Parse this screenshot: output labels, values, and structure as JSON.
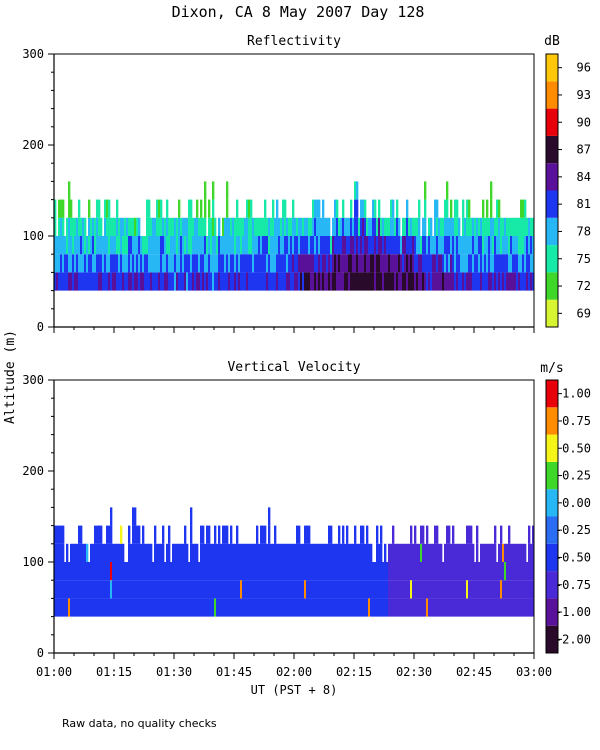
{
  "chart_data": {
    "title": "Dixon, CA  8 May 2007  Day 128",
    "ylabel": "Altitude (m)",
    "xlabel": "UT  (PST + 8)",
    "footnote": "Raw data, no quality checks",
    "x_ticks": [
      "01:00",
      "01:15",
      "01:30",
      "01:45",
      "02:00",
      "02:15",
      "02:30",
      "02:45",
      "03:00"
    ],
    "x_range_minutes": [
      60,
      180
    ],
    "y_ticks": [
      "0",
      "100",
      "200",
      "300"
    ],
    "y_range": [
      0,
      300
    ],
    "panels": [
      {
        "name": "reflectivity",
        "type": "heatmap",
        "title": "Reflectivity",
        "unit": "dB",
        "colorbar_labels": [
          "69",
          "72",
          "75",
          "78",
          "81",
          "84",
          "87",
          "90",
          "93",
          "96"
        ],
        "colors": [
          "#d8f531",
          "#3fd82a",
          "#17e9a7",
          "#27b7f5",
          "#1f36f0",
          "#5a1199",
          "#2a0a2a",
          "#e8000a",
          "#ff8c00",
          "#ffc60a"
        ],
        "altitude_min_m": 40,
        "typical_top_m": 120,
        "max_top_m": 160,
        "core_dB_range": [
          81,
          87
        ],
        "max_core_time": "02:20"
      },
      {
        "name": "vertical-velocity",
        "type": "heatmap",
        "title": "Vertical Velocity",
        "unit": "m/s",
        "colorbar_labels": [
          "-2.00",
          "-1.00",
          "-0.75",
          "-0.50",
          "-0.25",
          "0.00",
          "0.25",
          "0.50",
          "0.75",
          "1.00"
        ],
        "colors": [
          "#2a0a2a",
          "#5a1199",
          "#4a2ad6",
          "#1f36f0",
          "#2b6df2",
          "#27b7f5",
          "#3fd82a",
          "#f5f51a",
          "#ff8c00",
          "#e8000a"
        ],
        "altitude_min_m": 40,
        "typical_top_m": 120,
        "max_top_m": 160,
        "dominant_m_s": -0.5,
        "shift_to_m_s": -0.75,
        "shift_time": "02:25"
      }
    ]
  }
}
